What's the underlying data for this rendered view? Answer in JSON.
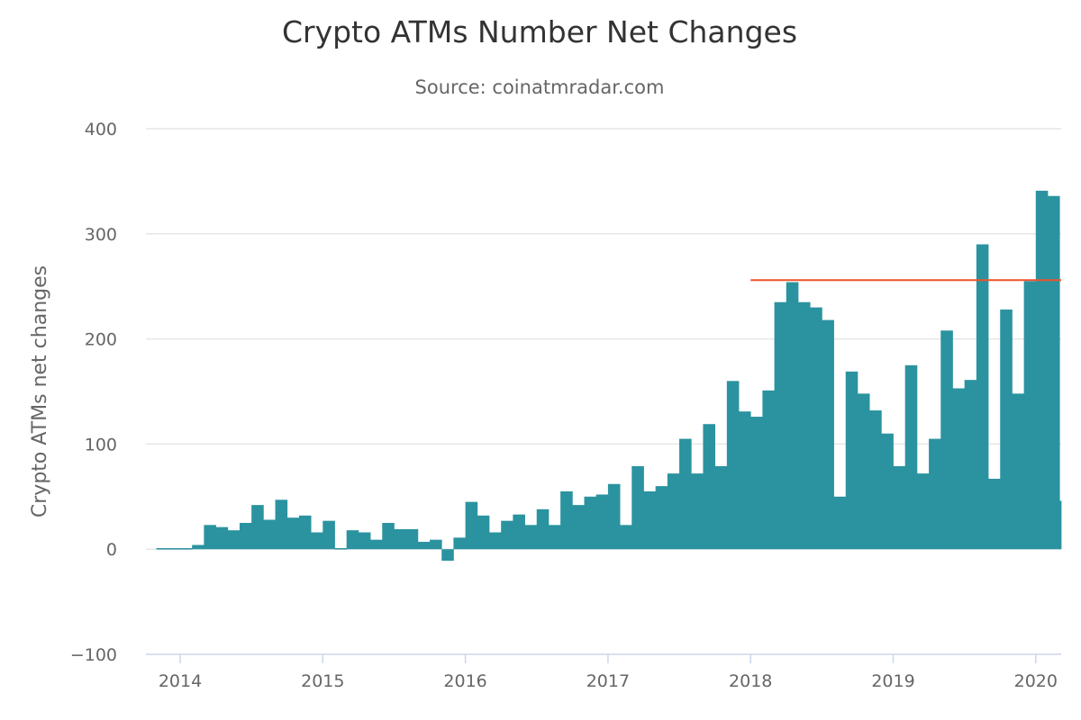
{
  "chart_data": {
    "type": "bar",
    "title": "Crypto ATMs Number Net Changes",
    "subtitle": "Source: coinatmradar.com",
    "ylabel": "Crypto ATMs net changes",
    "xlabel": "",
    "ylim": [
      -100,
      400
    ],
    "yticks": [
      -100,
      0,
      100,
      200,
      300,
      400
    ],
    "x_tick_years": [
      "2014",
      "2015",
      "2016",
      "2017",
      "2018",
      "2019",
      "2020"
    ],
    "start": {
      "year": 2013,
      "month": 11
    },
    "reference_line": {
      "value": 256,
      "from": "2018-01"
    },
    "grid": true,
    "legend": "none",
    "series": [
      {
        "name": "Crypto ATMs net changes",
        "values": [
          1,
          1,
          1,
          4,
          23,
          21,
          18,
          25,
          42,
          28,
          47,
          30,
          32,
          16,
          27,
          1,
          18,
          16,
          9,
          25,
          19,
          19,
          7,
          9,
          -11,
          11,
          45,
          32,
          16,
          27,
          33,
          23,
          38,
          23,
          55,
          42,
          50,
          52,
          62,
          23,
          79,
          55,
          60,
          72,
          105,
          72,
          119,
          79,
          160,
          131,
          126,
          151,
          235,
          254,
          235,
          230,
          218,
          50,
          169,
          148,
          132,
          110,
          79,
          175,
          72,
          105,
          208,
          153,
          161,
          290,
          67,
          228,
          148,
          255,
          341,
          336,
          46
        ]
      }
    ]
  }
}
